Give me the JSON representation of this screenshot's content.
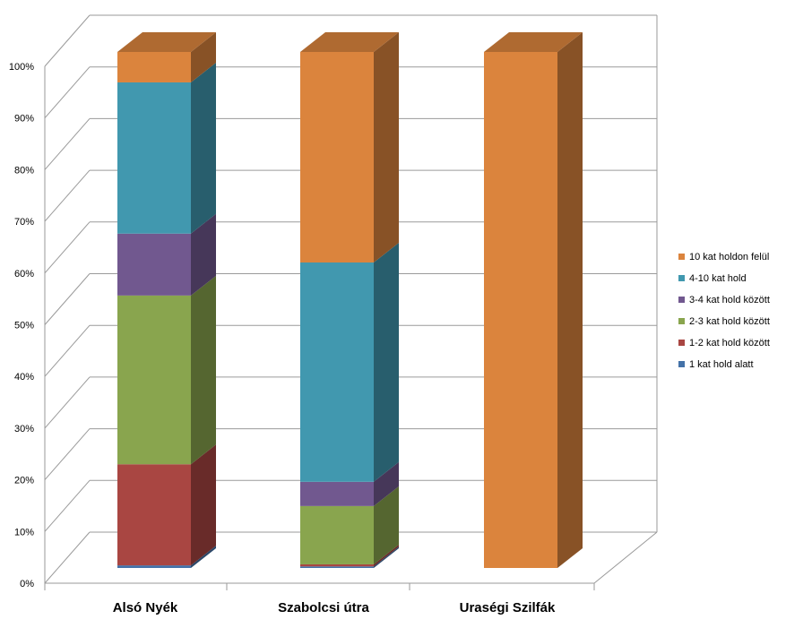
{
  "chart_data": {
    "type": "bar",
    "subtype": "3d-stacked-100-percent",
    "title": "",
    "categories": [
      "Alsó Nyék",
      "Szabolcsi útra",
      "Uraségi Szilfák"
    ],
    "series": [
      {
        "name": "1 kat hold alatt",
        "color": "#4472A8",
        "values": [
          0.5,
          0.3,
          0
        ]
      },
      {
        "name": "1-2 kat hold között",
        "color": "#A94642",
        "values": [
          19.6,
          0.4,
          0
        ]
      },
      {
        "name": "2-3 kat hold között",
        "color": "#89A54E",
        "values": [
          32.7,
          11.3,
          0
        ]
      },
      {
        "name": "3-4 kat hold között",
        "color": "#71588F",
        "values": [
          12.0,
          4.7,
          0
        ]
      },
      {
        "name": "4-10 kat hold",
        "color": "#4198AF",
        "values": [
          29.3,
          42.5,
          0
        ]
      },
      {
        "name": "10 kat holdon felül",
        "color": "#DB843D",
        "values": [
          5.9,
          40.8,
          100
        ]
      }
    ],
    "yticks": [
      "0%",
      "10%",
      "20%",
      "30%",
      "40%",
      "50%",
      "60%",
      "70%",
      "80%",
      "90%",
      "100%"
    ],
    "ylim": [
      0,
      100
    ],
    "grid": true,
    "legend": "right"
  }
}
